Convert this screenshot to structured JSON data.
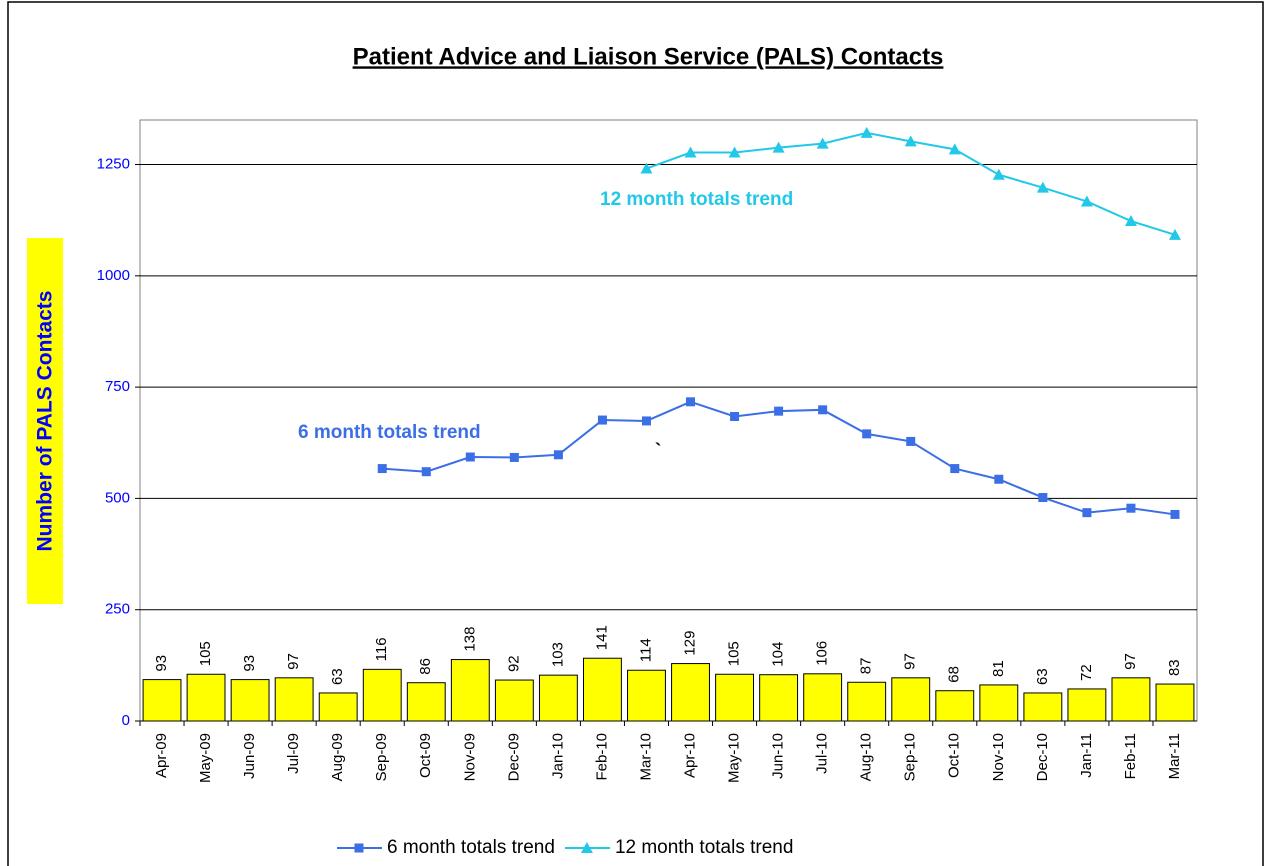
{
  "chart_data": {
    "type": "combo",
    "title": "Patient Advice and Liaison Service (PALS) Contacts",
    "y_label": "Number of PALS Contacts",
    "categories": [
      "Apr-09",
      "May-09",
      "Jun-09",
      "Jul-09",
      "Aug-09",
      "Sep-09",
      "Oct-09",
      "Nov-09",
      "Dec-09",
      "Jan-10",
      "Feb-10",
      "Mar-10",
      "Apr-10",
      "May-10",
      "Jun-10",
      "Jul-10",
      "Aug-10",
      "Sep-10",
      "Oct-10",
      "Nov-10",
      "Dec-10",
      "Jan-11",
      "Feb-11",
      "Mar-11"
    ],
    "bars": {
      "color": "#ffff00",
      "values": [
        93,
        105,
        93,
        97,
        63,
        116,
        86,
        138,
        92,
        103,
        141,
        114,
        129,
        105,
        104,
        106,
        87,
        97,
        68,
        81,
        63,
        72,
        97,
        83
      ]
    },
    "series": [
      {
        "name": "6 month totals trend",
        "color": "#3c6ee6",
        "marker": "square",
        "values": [
          null,
          null,
          null,
          null,
          null,
          567,
          560,
          593,
          592,
          598,
          676,
          674,
          717,
          684,
          696,
          699,
          645,
          628,
          567,
          543,
          502,
          468,
          478,
          464
        ]
      },
      {
        "name": "12 month totals trend",
        "color": "#22c8e8",
        "marker": "triangle",
        "values": [
          null,
          null,
          null,
          null,
          null,
          null,
          null,
          null,
          null,
          null,
          null,
          1241,
          1277,
          1277,
          1288,
          1297,
          1321,
          1302,
          1284,
          1227,
          1198,
          1167,
          1123,
          1092
        ]
      }
    ],
    "annotations": [
      {
        "text": "6 month totals trend",
        "series": 0
      },
      {
        "text": "12 month totals trend",
        "series": 1
      },
      {
        "text": "`"
      }
    ],
    "ylim": [
      0,
      1350
    ],
    "yticks": [
      0,
      250,
      500,
      750,
      1000,
      1250
    ],
    "grid": true,
    "legend": "bottom"
  }
}
